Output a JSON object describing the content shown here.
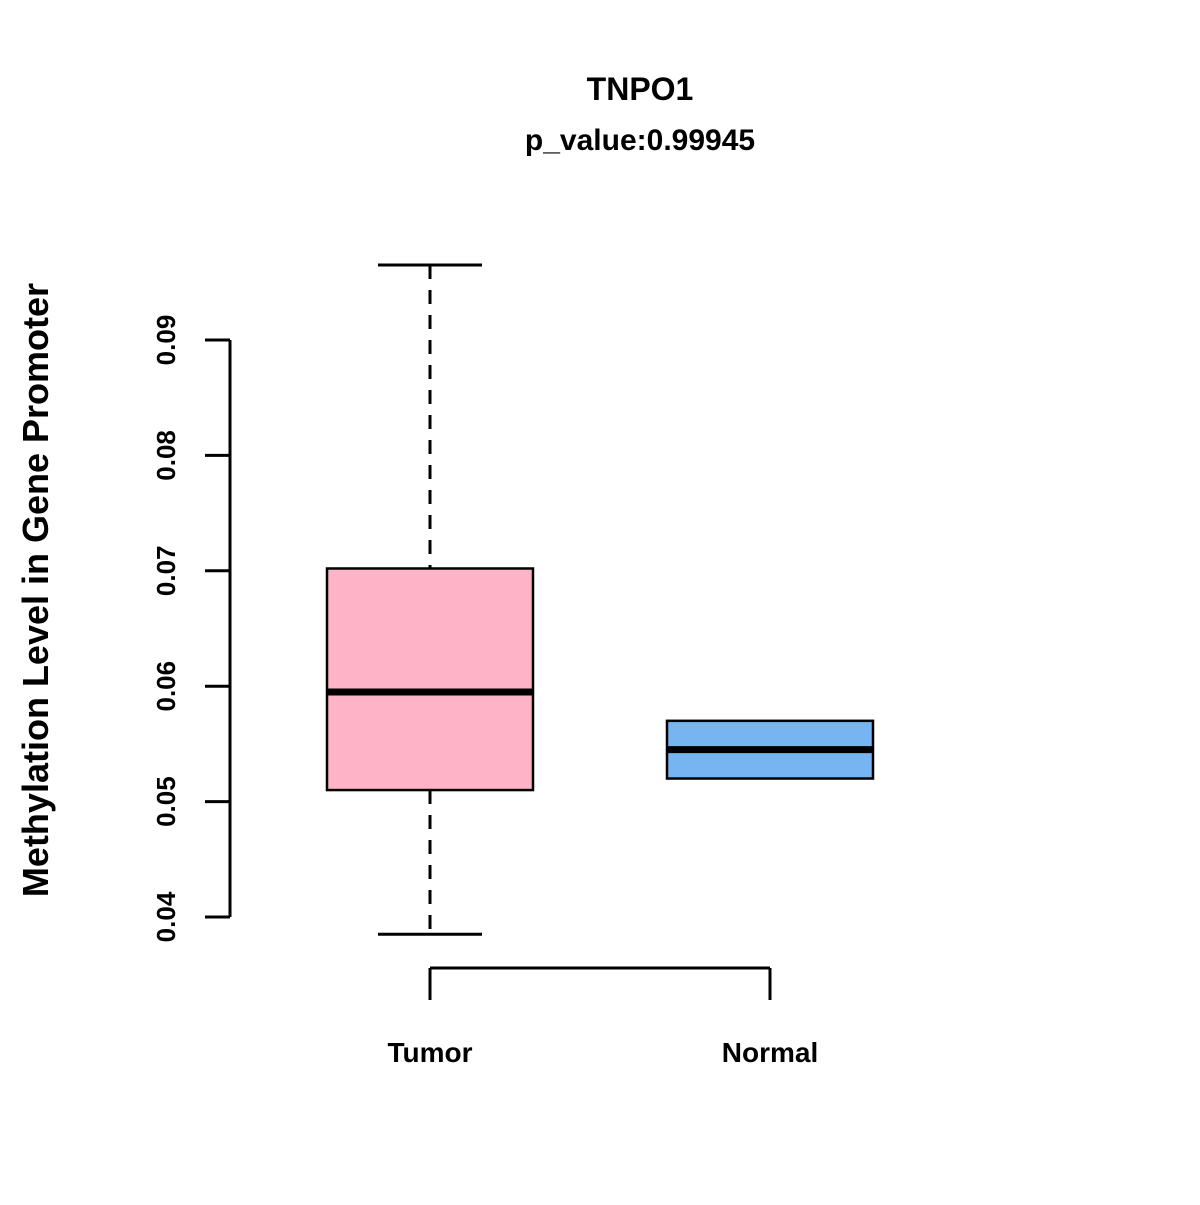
{
  "chart_data": {
    "type": "boxplot",
    "title": "TNPO1",
    "subtitle": "p_value:0.99945",
    "ylabel": "Methylation Level in Gene Promoter",
    "xlabel": "",
    "categories": [
      "Tumor",
      "Normal"
    ],
    "yticks": [
      0.04,
      0.05,
      0.06,
      0.07,
      0.08,
      0.09
    ],
    "ytick_labels": [
      "0.04",
      "0.05",
      "0.06",
      "0.07",
      "0.08",
      "0.09"
    ],
    "ylim": [
      0.035,
      0.1
    ],
    "grid": false,
    "legend": "none",
    "series": [
      {
        "name": "Tumor",
        "box_color": "#FFB3C6",
        "whisker_low": 0.0385,
        "q1": 0.051,
        "median": 0.0595,
        "q3": 0.0702,
        "whisker_high": 0.0965
      },
      {
        "name": "Normal",
        "box_color": "#77B5F2",
        "whisker_low": 0.052,
        "q1": 0.052,
        "median": 0.0545,
        "q3": 0.057,
        "whisker_high": 0.057
      }
    ]
  }
}
